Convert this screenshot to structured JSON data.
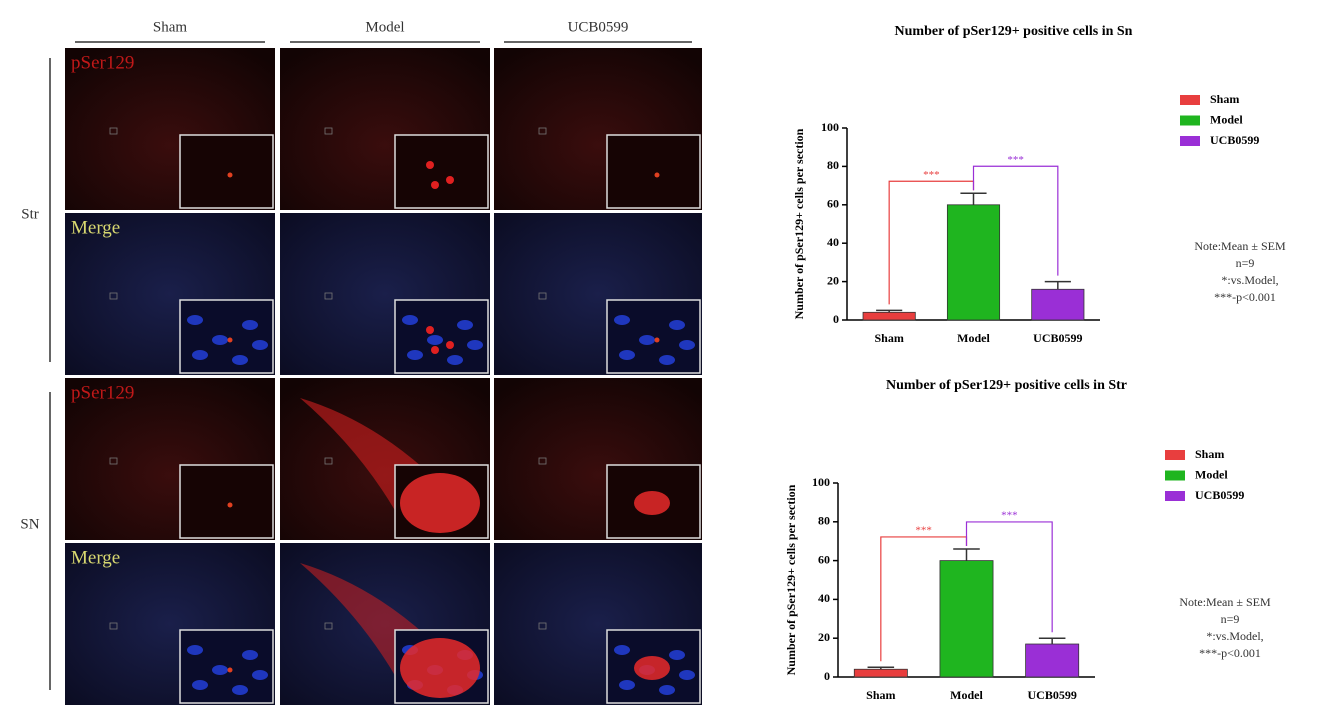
{
  "figure": {
    "columns": [
      "Sham",
      "Model",
      "UCB0599"
    ],
    "rows": [
      "Str",
      "SN"
    ],
    "panel_labels": [
      "pSer129",
      "Merge",
      "pSer129",
      "Merge"
    ]
  },
  "chart_data": [
    {
      "type": "bar",
      "title": "Number of pSer129+ positive cells in Sn",
      "y_label": "Number of pSer129+ cells per section",
      "categories": [
        "Sham",
        "Model",
        "UCB0599"
      ],
      "values": [
        4,
        60,
        16
      ],
      "errors": [
        1,
        6,
        4
      ],
      "colors": [
        "#e83e3e",
        "#1fb51f",
        "#9a2fd6"
      ],
      "ylim": [
        0,
        100
      ],
      "yticks": [
        0,
        20,
        40,
        60,
        80,
        100
      ],
      "annotations": [
        "***",
        "***"
      ],
      "notes": [
        "Note:Mean ± SEM",
        "n=9",
        "*:vs.Model,",
        "***-p<0.001"
      ]
    },
    {
      "type": "bar",
      "title": "Number of pSer129+ positive cells in Str",
      "y_label": "Number of pSer129+ cells per section",
      "categories": [
        "Sham",
        "Model",
        "UCB0599"
      ],
      "values": [
        4,
        60,
        17
      ],
      "errors": [
        1,
        6,
        3
      ],
      "colors": [
        "#e83e3e",
        "#1fb51f",
        "#9a2fd6"
      ],
      "ylim": [
        0,
        100
      ],
      "yticks": [
        0,
        20,
        40,
        60,
        80,
        100
      ],
      "annotations": [
        "***",
        "***"
      ],
      "notes": [
        "Note:Mean ± SEM",
        "n=9",
        "*:vs.Model,",
        "***-p<0.001"
      ]
    }
  ]
}
